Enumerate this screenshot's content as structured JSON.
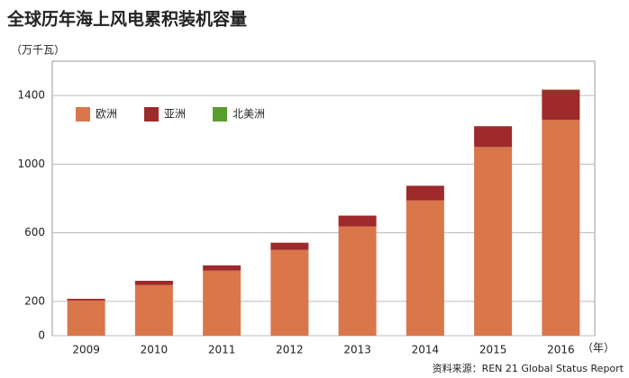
{
  "chart_data": {
    "type": "stacked_bar",
    "title": "全球历年海上风电累积装机容量",
    "y_unit": "（万千瓦）",
    "x_unit": "（年）",
    "source": "资料来源：REN 21 Global Status Report",
    "categories": [
      "2009",
      "2010",
      "2011",
      "2012",
      "2013",
      "2014",
      "2015",
      "2016"
    ],
    "series": [
      {
        "name": "欧洲",
        "color": "#d9764a",
        "values": [
          205,
          295,
          379,
          500,
          637,
          789,
          1100,
          1258
        ]
      },
      {
        "name": "亚洲",
        "color": "#9e2a2b",
        "values": [
          10,
          25,
          31,
          42,
          63,
          85,
          121,
          174
        ]
      },
      {
        "name": "北美洲",
        "color": "#5a9e2f",
        "values": [
          0,
          0,
          0,
          0,
          0,
          0,
          0,
          3
        ]
      }
    ],
    "ylim": [
      0,
      1600
    ],
    "yticks": [
      0,
      200,
      600,
      1000,
      1400
    ],
    "grid": true
  }
}
